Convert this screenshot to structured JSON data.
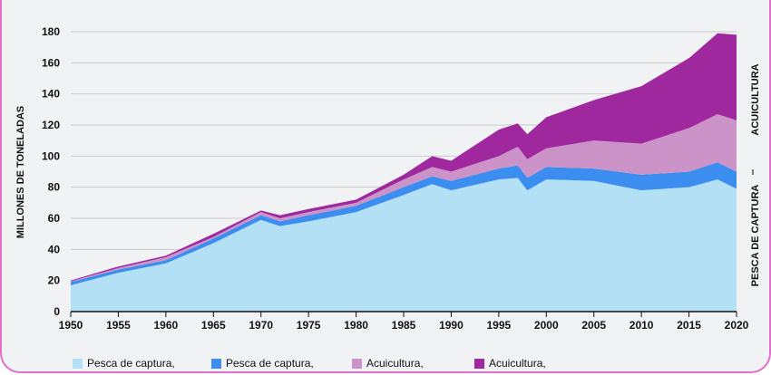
{
  "chart_data": {
    "type": "area",
    "stacked": true,
    "title": "",
    "ylabel": "MILLONES DE TONELADAS",
    "xlabel": "",
    "ylim": [
      0,
      180
    ],
    "xlim": [
      1950,
      2020
    ],
    "yticks": [
      0,
      20,
      40,
      60,
      80,
      100,
      120,
      140,
      160,
      180
    ],
    "xticks": [
      1950,
      1955,
      1960,
      1965,
      1970,
      1975,
      1980,
      1985,
      1990,
      1995,
      2000,
      2005,
      2010,
      2015,
      2020
    ],
    "grid": true,
    "x": [
      1950,
      1955,
      1960,
      1965,
      1970,
      1972,
      1975,
      1980,
      1985,
      1988,
      1990,
      1995,
      1997,
      1998,
      2000,
      2005,
      2010,
      2015,
      2018,
      2020
    ],
    "series": [
      {
        "name": "Pesca de captura,",
        "color": "#b3e0f5",
        "values": [
          17,
          25,
          31,
          44,
          59,
          55,
          58,
          64,
          75,
          82,
          78,
          85,
          86,
          78,
          85,
          84,
          78,
          80,
          85,
          79
        ]
      },
      {
        "name": "Pesca de captura,",
        "color": "#3b8ef0",
        "values": [
          2,
          2,
          2,
          3,
          3,
          3,
          4,
          4,
          5,
          5,
          6,
          7,
          8,
          8,
          8,
          8,
          10,
          10,
          11,
          11
        ]
      },
      {
        "name": "Acuicultura,",
        "color": "#cc93c9",
        "values": [
          0.5,
          1,
          2,
          1,
          2,
          2,
          2,
          2,
          5,
          6,
          6,
          8,
          12,
          12,
          12,
          18,
          20,
          28,
          31,
          33
        ]
      },
      {
        "name": "Acuicultura,",
        "color": "#a0289e",
        "values": [
          0.5,
          1,
          1,
          2,
          1,
          2,
          2,
          2,
          3,
          7,
          7,
          17,
          15,
          16,
          20,
          26,
          37,
          45,
          52,
          55
        ]
      }
    ],
    "right_labels": {
      "top": "ACUICULTURA",
      "bottom": "PESCA DE CAPTURA"
    },
    "legend_position": "bottom"
  }
}
